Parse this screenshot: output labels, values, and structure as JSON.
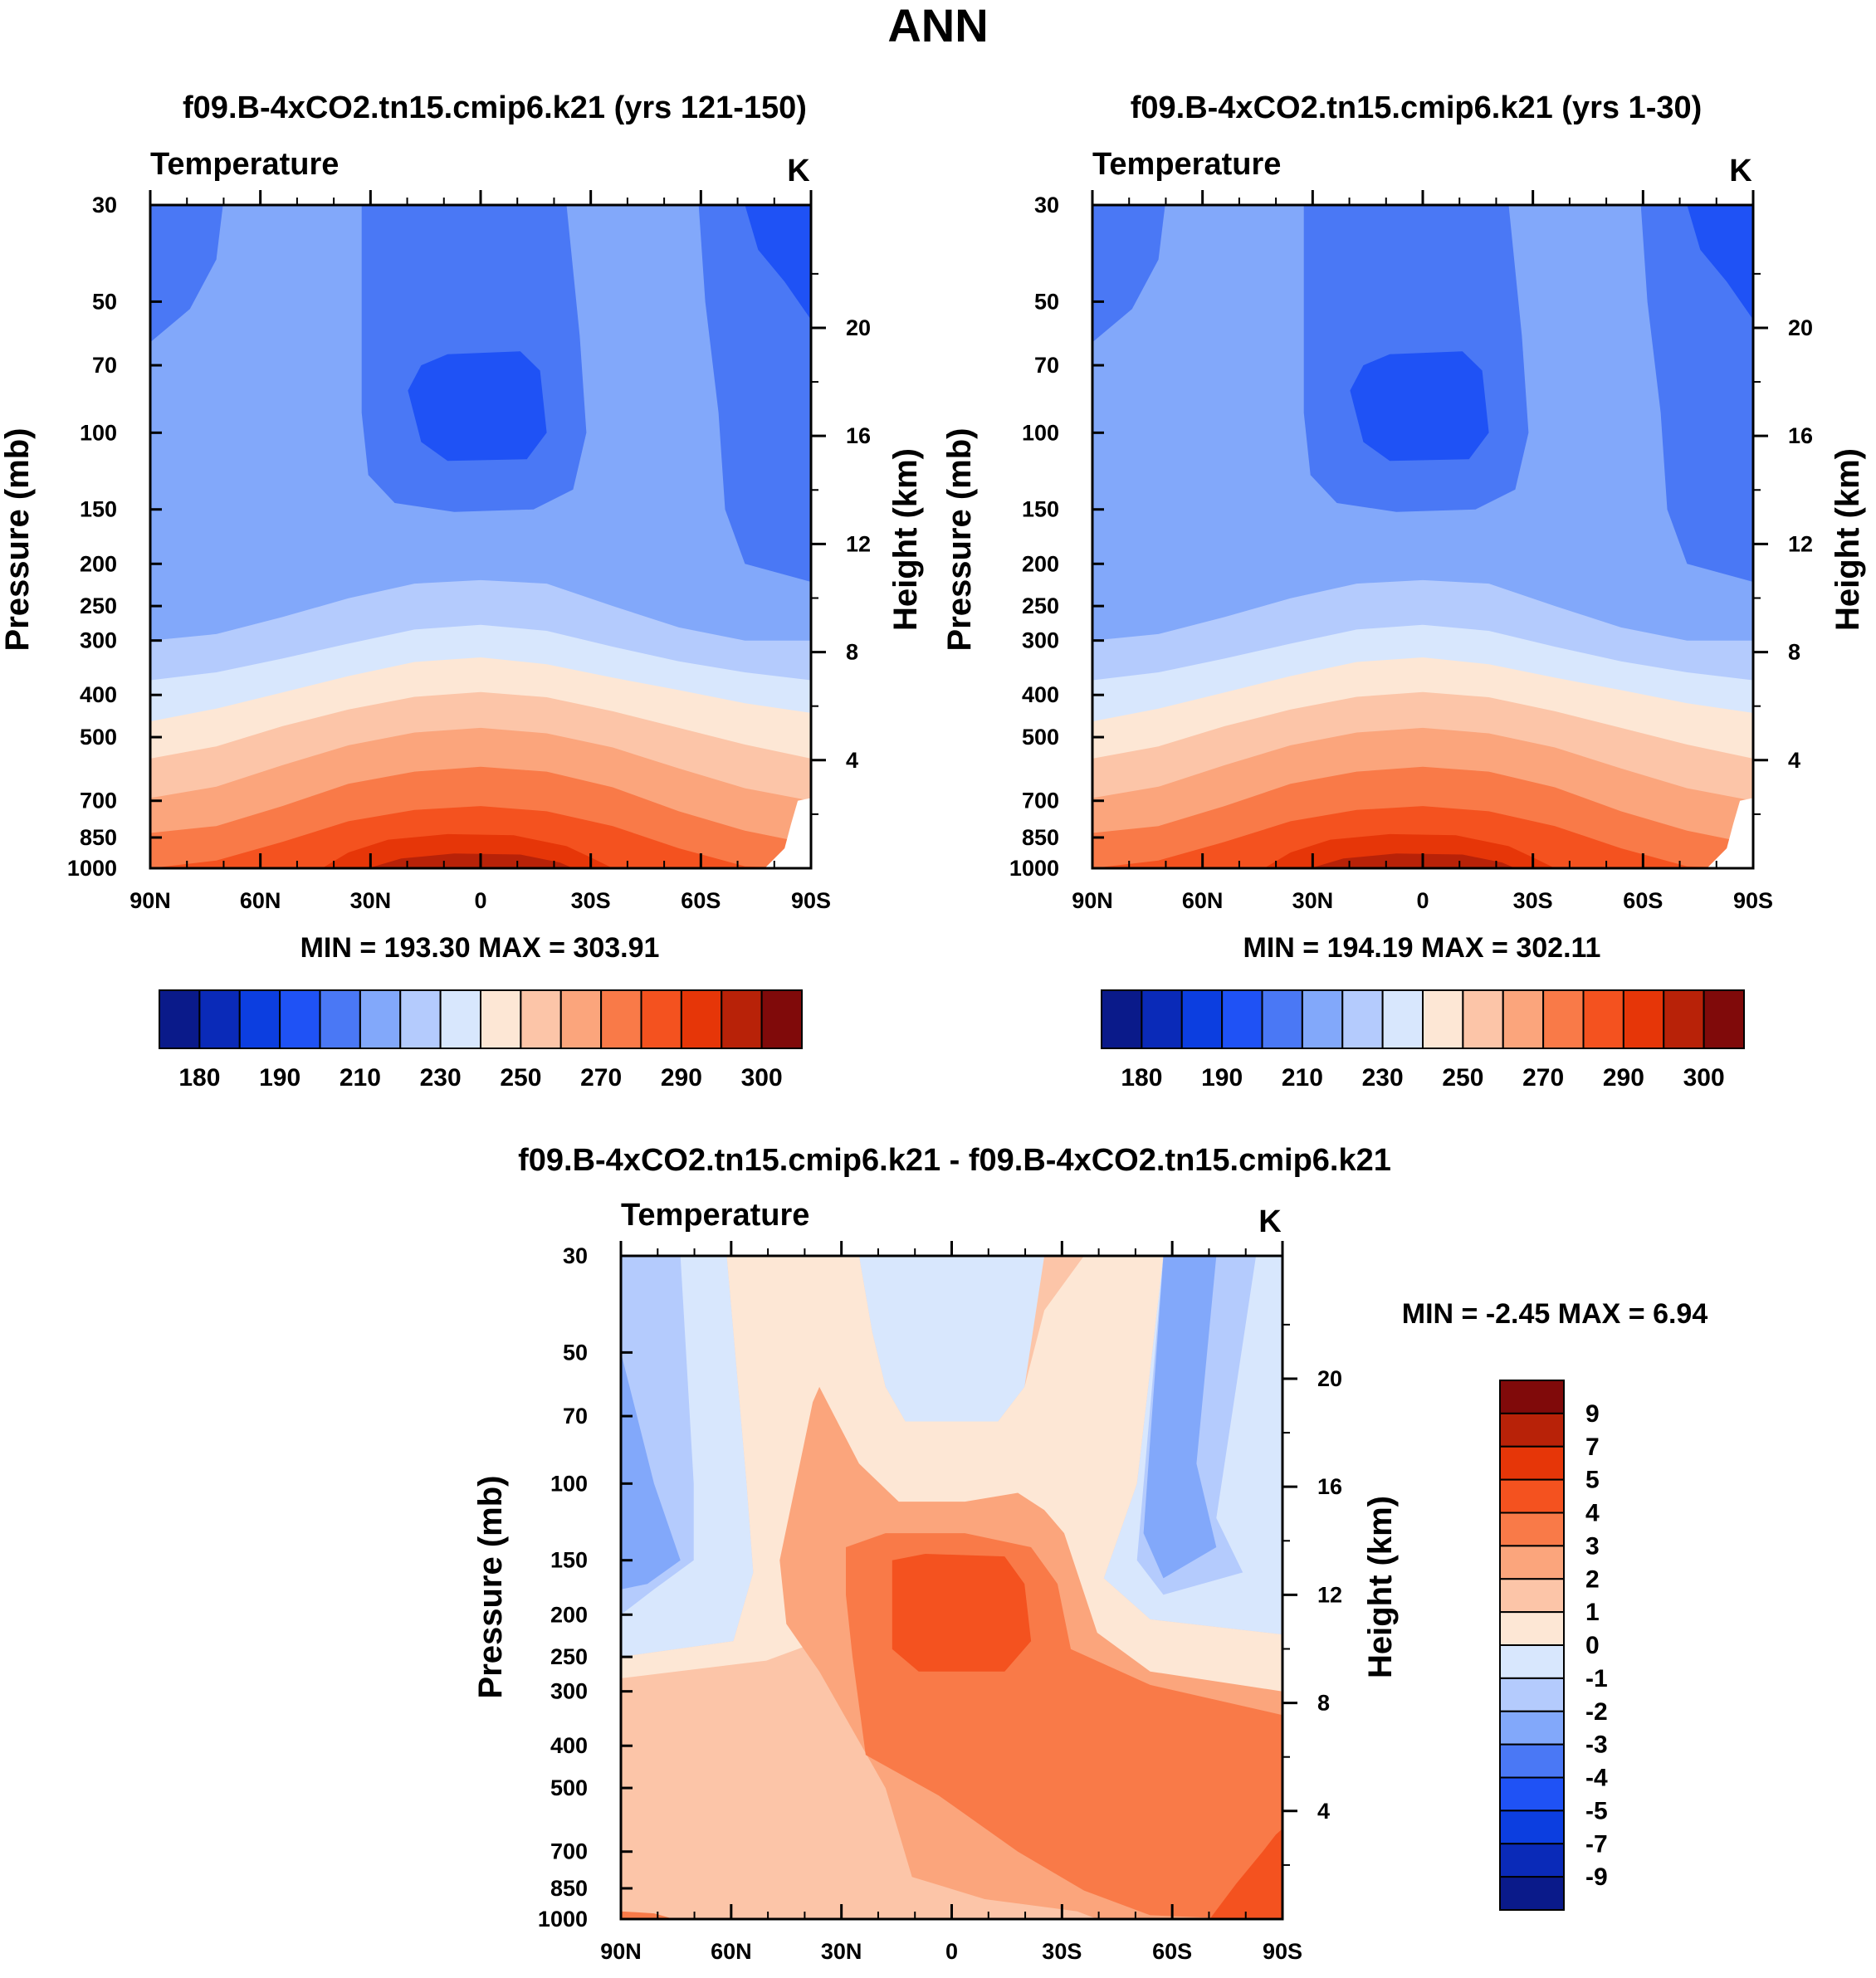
{
  "figure_title": "ANN",
  "chart_data": [
    {
      "type": "contour",
      "title": "f09.B-4xCO2.tn15.cmip6.k21 (yrs 121-150)",
      "variable": "Temperature",
      "units": "K",
      "xlabel": "",
      "ylabel": "Pressure (mb)",
      "y2label": "Height (km)",
      "x_ticks": [
        "90N",
        "60N",
        "30N",
        "0",
        "30S",
        "60S",
        "90S"
      ],
      "pressure_levels": [
        30,
        50,
        70,
        100,
        150,
        200,
        250,
        300,
        400,
        500,
        700,
        850,
        1000
      ],
      "height_ticks": [
        20,
        16,
        12,
        8,
        4
      ],
      "stats": "MIN = 193.30  MAX = 303.91",
      "min": 193.3,
      "max": 303.91,
      "colorbar_labels": [
        "180",
        "190",
        "210",
        "230",
        "250",
        "270",
        "290",
        "300"
      ],
      "colorbar_colors": [
        "#0a1a8a",
        "#0a2ab8",
        "#0c3ee0",
        "#1f52f5",
        "#4a78f5",
        "#82a8fa",
        "#b4cbfd",
        "#d8e7fd",
        "#fde7d5",
        "#fcc5a8",
        "#fba57c",
        "#f97a48",
        "#f4521f",
        "#e63608",
        "#b82208",
        "#800a0a"
      ]
    },
    {
      "type": "contour",
      "title": "f09.B-4xCO2.tn15.cmip6.k21 (yrs 1-30)",
      "variable": "Temperature",
      "units": "K",
      "xlabel": "",
      "ylabel": "Pressure (mb)",
      "y2label": "Height (km)",
      "x_ticks": [
        "90N",
        "60N",
        "30N",
        "0",
        "30S",
        "60S",
        "90S"
      ],
      "pressure_levels": [
        30,
        50,
        70,
        100,
        150,
        200,
        250,
        300,
        400,
        500,
        700,
        850,
        1000
      ],
      "height_ticks": [
        20,
        16,
        12,
        8,
        4
      ],
      "stats": "MIN = 194.19  MAX = 302.11",
      "min": 194.19,
      "max": 302.11,
      "colorbar_labels": [
        "180",
        "190",
        "210",
        "230",
        "250",
        "270",
        "290",
        "300"
      ],
      "colorbar_colors": [
        "#0a1a8a",
        "#0a2ab8",
        "#0c3ee0",
        "#1f52f5",
        "#4a78f5",
        "#82a8fa",
        "#b4cbfd",
        "#d8e7fd",
        "#fde7d5",
        "#fcc5a8",
        "#fba57c",
        "#f97a48",
        "#f4521f",
        "#e63608",
        "#b82208",
        "#800a0a"
      ]
    },
    {
      "type": "contour",
      "title": "f09.B-4xCO2.tn15.cmip6.k21 - f09.B-4xCO2.tn15.cmip6.k21",
      "variable": "Temperature",
      "units": "K",
      "xlabel": "",
      "ylabel": "Pressure (mb)",
      "y2label": "Height (km)",
      "x_ticks": [
        "90N",
        "60N",
        "30N",
        "0",
        "30S",
        "60S",
        "90S"
      ],
      "pressure_levels": [
        30,
        50,
        70,
        100,
        150,
        200,
        250,
        300,
        400,
        500,
        700,
        850,
        1000
      ],
      "height_ticks": [
        20,
        16,
        12,
        8,
        4
      ],
      "stats": "MIN =  -2.45  MAX =   6.94",
      "min": -2.45,
      "max": 6.94,
      "colorbar_labels": [
        "9",
        "7",
        "5",
        "4",
        "3",
        "2",
        "1",
        "0",
        "-1",
        "-2",
        "-3",
        "-4",
        "-5",
        "-7",
        "-9"
      ],
      "colorbar_colors": [
        "#800a0a",
        "#b82208",
        "#e63608",
        "#f4521f",
        "#f97a48",
        "#fba57c",
        "#fcc5a8",
        "#fde7d5",
        "#d8e7fd",
        "#b4cbfd",
        "#82a8fa",
        "#4a78f5",
        "#1f52f5",
        "#0c3ee0",
        "#0a2ab8",
        "#0a1a8a"
      ]
    }
  ]
}
